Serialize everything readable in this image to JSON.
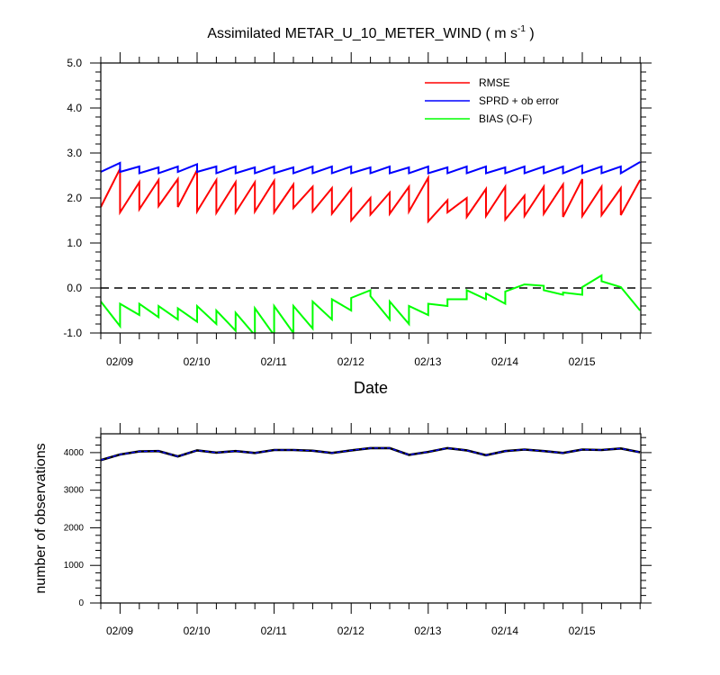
{
  "chart_data": [
    {
      "type": "line",
      "title": "Assimilated METAR_U_10_METER_WIND ( m s",
      "title_unit_sup": "-1",
      "title_close": " )",
      "xlabel": "Date",
      "ylabel": "",
      "ylim": [
        -1.0,
        5.0
      ],
      "yticks": [
        "5.0",
        "4.0",
        "3.0",
        "2.0",
        "1.0",
        "0.0",
        "-1.0"
      ],
      "xticks": [
        "02/09",
        "02/10",
        "02/11",
        "02/12",
        "02/13",
        "02/14",
        "02/15"
      ],
      "zero_line": "dashed",
      "legend_position": "top-right",
      "colors": {
        "rmse": "#ff0000",
        "spread": "#0000ff",
        "bias": "#00ff00"
      },
      "series": [
        {
          "name": "RMSE",
          "color": "#ff0000",
          "prior": [
            1.8,
            1.68,
            1.75,
            1.82,
            1.8,
            1.7,
            1.67,
            1.68,
            1.7,
            1.68,
            1.78,
            1.7,
            1.65,
            1.5,
            1.63,
            1.65,
            1.7,
            1.48,
            1.68,
            1.58,
            1.6,
            1.52,
            1.6,
            1.65,
            1.58,
            1.6,
            1.62,
            1.62
          ],
          "posterior": [
            2.65,
            2.35,
            2.4,
            2.42,
            2.62,
            2.4,
            2.35,
            2.35,
            2.38,
            2.3,
            2.25,
            2.22,
            2.2,
            2.0,
            2.12,
            2.25,
            2.45,
            1.95,
            2.0,
            2.2,
            2.25,
            2.05,
            2.25,
            2.3,
            2.42,
            2.25,
            2.22,
            2.4
          ]
        },
        {
          "name": "SPRD + ob error",
          "color": "#0000ff",
          "prior": [
            2.58,
            2.58,
            2.55,
            2.55,
            2.58,
            2.58,
            2.55,
            2.55,
            2.55,
            2.55,
            2.55,
            2.55,
            2.55,
            2.55,
            2.55,
            2.55,
            2.55,
            2.55,
            2.55,
            2.55,
            2.55,
            2.55,
            2.55,
            2.55,
            2.55,
            2.55,
            2.55,
            2.55
          ],
          "posterior": [
            2.78,
            2.7,
            2.68,
            2.7,
            2.75,
            2.7,
            2.7,
            2.68,
            2.7,
            2.68,
            2.7,
            2.7,
            2.7,
            2.68,
            2.7,
            2.68,
            2.7,
            2.68,
            2.7,
            2.7,
            2.68,
            2.7,
            2.7,
            2.7,
            2.72,
            2.7,
            2.7,
            2.8
          ]
        },
        {
          "name": "BIAS (O-F)",
          "color": "#00ff00",
          "prior": [
            -0.3,
            -0.35,
            -0.35,
            -0.4,
            -0.45,
            -0.4,
            -0.5,
            -0.55,
            -0.45,
            -0.4,
            -0.4,
            -0.3,
            -0.25,
            -0.22,
            -0.18,
            -0.3,
            -0.4,
            -0.35,
            -0.25,
            -0.05,
            -0.12,
            -0.08,
            0.08,
            -0.05,
            -0.1,
            0.02,
            0.15,
            0.02
          ],
          "posterior": [
            -0.85,
            -0.6,
            -0.65,
            -0.7,
            -0.75,
            -0.8,
            -0.95,
            -1.05,
            -1.05,
            -1.0,
            -0.9,
            -0.7,
            -0.5,
            -0.05,
            -0.7,
            -0.8,
            -0.6,
            -0.4,
            -0.25,
            -0.25,
            -0.35,
            0.08,
            0.05,
            -0.15,
            -0.15,
            0.28,
            0.02,
            -0.5
          ]
        }
      ]
    },
    {
      "type": "line",
      "title": "",
      "xlabel": "",
      "ylabel": "number of observations",
      "ylim": [
        0,
        4500
      ],
      "yticks": [
        "4000",
        "3000",
        "2000",
        "1000",
        "0"
      ],
      "xticks": [
        "02/09",
        "02/10",
        "02/11",
        "02/12",
        "02/13",
        "02/14",
        "02/15"
      ],
      "series": [
        {
          "name": "",
          "color": "#000000",
          "values": [
            3800,
            3950,
            4030,
            4040,
            3900,
            4060,
            4000,
            4040,
            3990,
            4070,
            4070,
            4050,
            3990,
            4060,
            4120,
            4120,
            3940,
            4020,
            4120,
            4060,
            3930,
            4040,
            4080,
            4040,
            3990,
            4080,
            4070,
            4110,
            4010
          ]
        }
      ]
    }
  ]
}
